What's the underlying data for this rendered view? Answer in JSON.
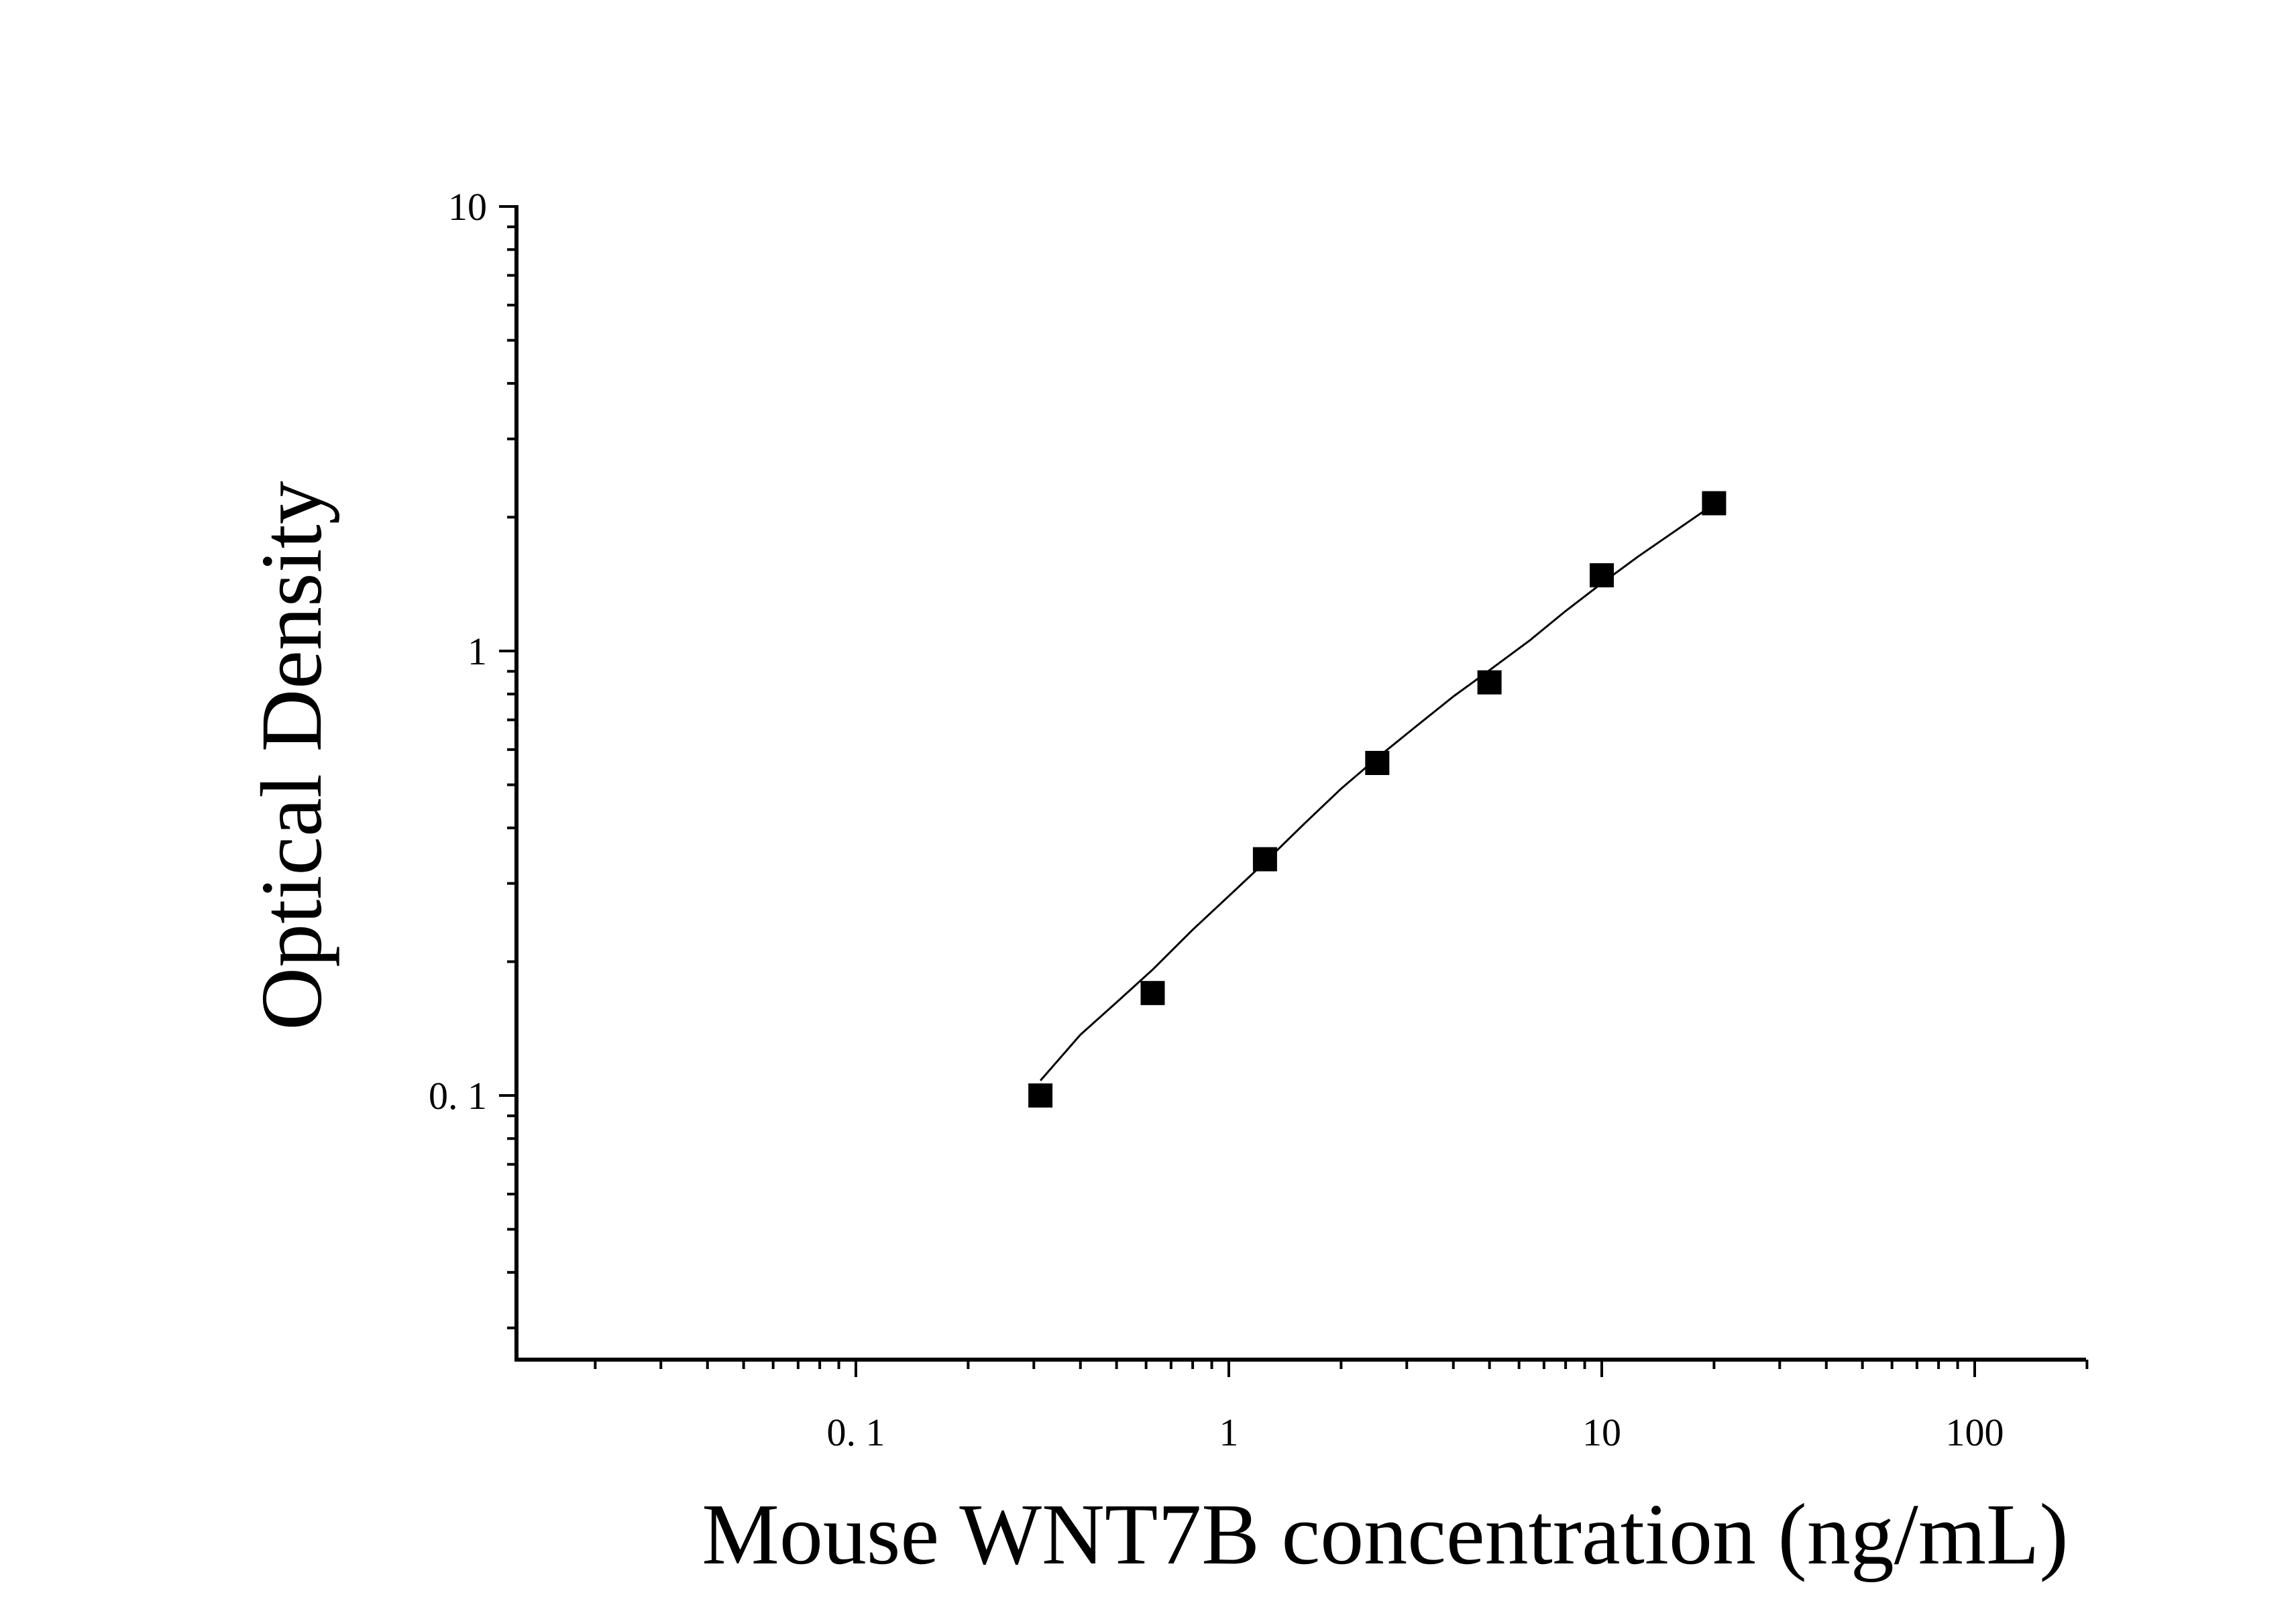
{
  "chart_data": {
    "type": "scatter",
    "xlabel": "Mouse WNT7B concentration (ng/mL)",
    "ylabel": "Optical Density",
    "xscale": "log",
    "yscale": "log",
    "xlim": [
      0.012,
      200
    ],
    "ylim": [
      0.025,
      10
    ],
    "xticks": [
      {
        "value": 0.1,
        "label": "0. 1"
      },
      {
        "value": 1,
        "label": "1"
      },
      {
        "value": 10,
        "label": "10"
      },
      {
        "value": 100,
        "label": "100"
      }
    ],
    "yticks": [
      {
        "value": 0.1,
        "label": "0. 1"
      },
      {
        "value": 1,
        "label": "1"
      },
      {
        "value": 10,
        "label": "10"
      }
    ],
    "grid": false,
    "legend": false,
    "series": [
      {
        "marker": "square",
        "color": "#000000",
        "x": [
          0.3125,
          0.625,
          1.25,
          2.5,
          5,
          10,
          20
        ],
        "y": [
          0.1,
          0.17,
          0.34,
          0.56,
          0.85,
          1.48,
          2.15
        ]
      }
    ],
    "fit_curve": {
      "type": "smooth-line",
      "color": "#000000",
      "x": [
        0.3125,
        0.4,
        0.5,
        0.625,
        0.8,
        1.0,
        1.25,
        1.6,
        2.0,
        2.5,
        3.2,
        4.0,
        5.0,
        6.4,
        8.0,
        10.0,
        12.5,
        16.0,
        20.0
      ],
      "y": [
        0.108,
        0.137,
        0.162,
        0.192,
        0.236,
        0.281,
        0.335,
        0.41,
        0.49,
        0.575,
        0.68,
        0.79,
        0.905,
        1.055,
        1.23,
        1.42,
        1.63,
        1.88,
        2.14
      ]
    }
  }
}
